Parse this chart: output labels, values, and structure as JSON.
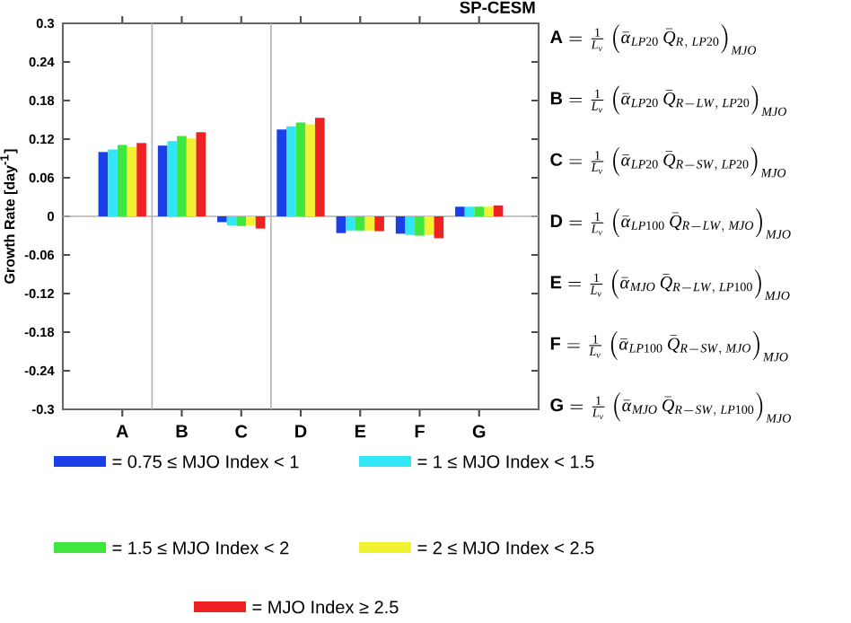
{
  "chart_data": {
    "type": "bar",
    "title": "SP-CESM",
    "ylabel": "Growth Rate [day$^{-1}$]",
    "categories": [
      "A",
      "B",
      "C",
      "D",
      "E",
      "F",
      "G"
    ],
    "series": [
      {
        "name": "= 0.75 ≤ MJO Index < 1",
        "color": "#1a3fe6",
        "values": [
          0.1,
          0.11,
          -0.009,
          0.135,
          -0.026,
          -0.027,
          0.015
        ]
      },
      {
        "name": "= 1 ≤ MJO Index < 1.5",
        "color": "#33e6f5",
        "values": [
          0.104,
          0.117,
          -0.014,
          0.14,
          -0.022,
          -0.029,
          0.015
        ]
      },
      {
        "name": "= 1.5 ≤ MJO Index < 2",
        "color": "#3ee63e",
        "values": [
          0.111,
          0.125,
          -0.015,
          0.146,
          -0.022,
          -0.03,
          0.015
        ]
      },
      {
        "name": "= 2 ≤ MJO Index < 2.5",
        "color": "#f2f233",
        "values": [
          0.108,
          0.121,
          -0.014,
          0.143,
          -0.022,
          -0.029,
          0.015
        ]
      },
      {
        "name": "= MJO Index ≥ 2.5",
        "color": "#ee2222",
        "values": [
          0.114,
          0.131,
          -0.019,
          0.153,
          -0.023,
          -0.034,
          0.017
        ]
      }
    ],
    "ylim": [
      -0.3,
      0.3
    ],
    "yticks": [
      -0.3,
      -0.24,
      -0.18,
      -0.12,
      -0.06,
      0,
      0.06,
      0.12,
      0.18,
      0.24,
      0.3
    ],
    "ref_lines": [
      {
        "axis": "y",
        "value": 0,
        "color": "#b0b0b0"
      }
    ],
    "legend": "bottom",
    "grid": false,
    "annotations": [
      "\\textbf{A} = \\frac{1}{L_v}\\left(\\bar{\\alpha}_{LP20}\\,\\bar{Q}_{R,\\,LP20}\\right)_{MJO}",
      "\\textbf{B} = \\frac{1}{L_v}\\left(\\bar{\\alpha}_{LP20}\\,\\bar{Q}_{R{-}LW,\\,LP20}\\right)_{MJO}",
      "\\textbf{C} = \\frac{1}{L_v}\\left(\\bar{\\alpha}_{LP20}\\,\\bar{Q}_{R{-}SW,\\,LP20}\\right)_{MJO}",
      "\\textbf{D} = \\frac{1}{L_v}\\left(\\bar{\\alpha}_{LP100}\\,\\bar{Q}_{R{-}LW,\\,MJO}\\right)_{MJO}",
      "\\textbf{E} = \\frac{1}{L_v}\\left(\\bar{\\alpha}_{MJO}\\,\\bar{Q}_{R{-}LW,\\,LP100}\\right)_{MJO}",
      "\\textbf{F} = \\frac{1}{L_v}\\left(\\bar{\\alpha}_{LP100}\\,\\bar{Q}_{R{-}SW,\\,MJO}\\right)_{MJO}",
      "\\textbf{G} = \\frac{1}{L_v}\\left(\\bar{\\alpha}_{MJO}\\,\\bar{Q}_{R{-}SW,\\,LP100}\\right)_{MJO}"
    ]
  }
}
